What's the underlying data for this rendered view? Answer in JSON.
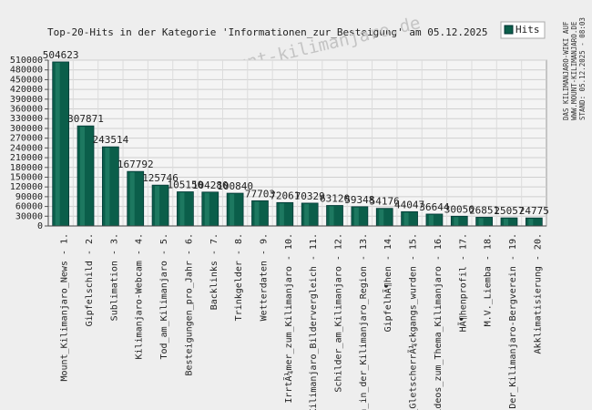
{
  "chart_data": {
    "type": "bar",
    "title": "Top-20-Hits in der Kategorie 'Informationen_zur_Besteigung' am 05.12.2025",
    "watermark": "copyright - www.mount-kilimanjaro.de",
    "side_note": [
      "DAS KILIMANJARO-WIKI AUF",
      "WWW.MOUNT-KILIMANJARO.DE",
      "STAND: 05.12.2025 - 08:03"
    ],
    "series": [
      {
        "name": "Hits",
        "color": "#0b5e4a",
        "values": [
          504623,
          307871,
          243514,
          167792,
          125746,
          105150,
          104280,
          100840,
          77703,
          72061,
          70329,
          63120,
          59348,
          54176,
          44047,
          36644,
          30056,
          26851,
          25057,
          24775
        ]
      }
    ],
    "categories": [
      "Mount_Kilimanjaro_News - 1.",
      "Gipfelschild - 2.",
      "Sublimation - 3.",
      "Kilimanjaro-Webcam - 4.",
      "Tod_am_Kilimanjaro - 5.",
      "Besteigungen_pro_Jahr - 6.",
      "Backlinks - 7.",
      "Trinkgelder - 8.",
      "Wetterdaten - 9.",
      "IrrtÃ¼mer_zum_Kilimanjaro - 10.",
      "Kilimanjaro_Bildervergleich - 11.",
      "Schilder_am_Kilimanjaro - 12.",
      "n_in_der_Kilimanjaro_Region - 13.",
      "GipfelhÃ¶hen - 14.",
      "_GletscherrÃ¼ckgangs_wurden - 15.",
      "ideos_zum_Thema_Kilimanjaro - 16.",
      "HÃ¶henprofil - 17.",
      "M.V._Liemba - 18.",
      "Der_Kilimanjaro-Bergverein - 19.",
      "Akklimatisierung - 20."
    ],
    "ylim": [
      0,
      510000
    ],
    "yticks": [
      0,
      30000,
      60000,
      90000,
      120000,
      150000,
      180000,
      210000,
      240000,
      270000,
      300000,
      330000,
      360000,
      390000,
      420000,
      450000,
      480000,
      510000
    ],
    "grid": true,
    "legend": "top-right"
  }
}
